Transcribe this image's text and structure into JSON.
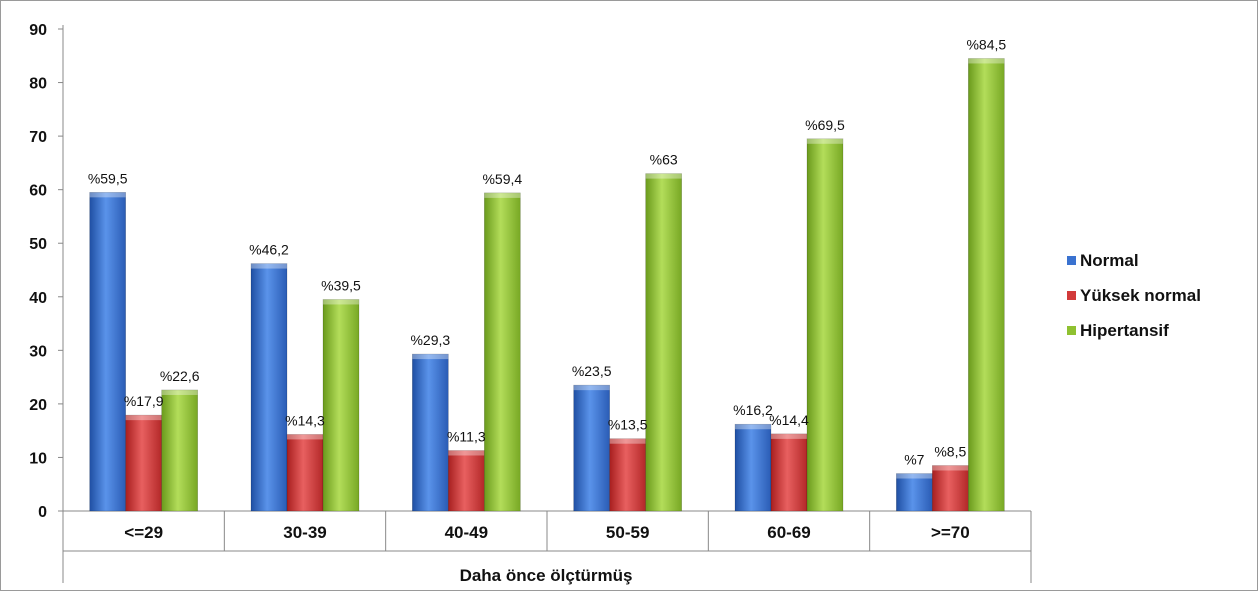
{
  "chart_data": {
    "type": "bar",
    "title": "",
    "xlabel": "Daha önce ölçtürmüş",
    "ylabel": "",
    "ylim": [
      0,
      90
    ],
    "yticks": [
      0,
      10,
      20,
      30,
      40,
      50,
      60,
      70,
      80,
      90
    ],
    "grid": false,
    "legend_position": "right",
    "categories": [
      "<=29",
      "30-39",
      "40-49",
      "50-59",
      "60-69",
      ">=70"
    ],
    "series": [
      {
        "name": "Normal",
        "color": "#3a72d0",
        "values": [
          59.5,
          46.2,
          29.3,
          23.5,
          16.2,
          7
        ],
        "labels": [
          "%59,5",
          "%46,2",
          "%29,3",
          "%23,5",
          "%16,2",
          "%7"
        ]
      },
      {
        "name": "Yüksek normal",
        "color": "#d23a3a",
        "values": [
          17.9,
          14.3,
          11.3,
          13.5,
          14.4,
          8.5
        ],
        "labels": [
          "%17,9",
          "%14,3",
          "%11,3",
          "%13,5",
          "%14,4",
          "%8,5"
        ]
      },
      {
        "name": "Hipertansif",
        "color": "#8fc131",
        "values": [
          22.6,
          39.5,
          59.4,
          63,
          69.5,
          84.5
        ],
        "labels": [
          "%22,6",
          "%39,5",
          "%59,4",
          "%63",
          "%69,5",
          "%84,5"
        ]
      }
    ]
  }
}
